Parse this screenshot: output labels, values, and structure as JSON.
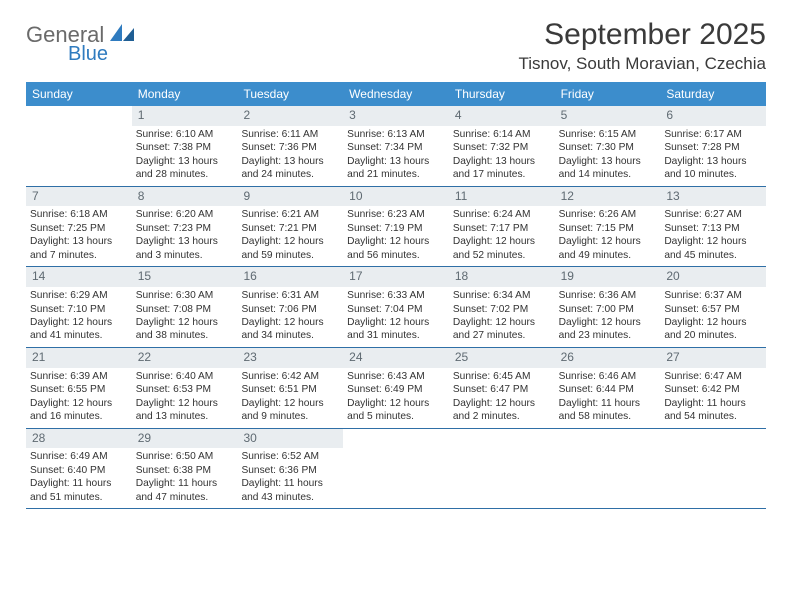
{
  "brand": {
    "name_a": "General",
    "name_b": "Blue",
    "gray": "#6a6a6a",
    "blue": "#2f7bbf"
  },
  "title": "September 2025",
  "location": "Tisnov, South Moravian, Czechia",
  "colors": {
    "header_bg": "#3c8dcc",
    "header_text": "#ffffff",
    "band_bg": "#e9edf0",
    "band_text": "#5f6a72",
    "divider": "#2f6fa6",
    "body_text": "#333333"
  },
  "dow": [
    "Sunday",
    "Monday",
    "Tuesday",
    "Wednesday",
    "Thursday",
    "Friday",
    "Saturday"
  ],
  "weeks": [
    [
      null,
      {
        "n": "1",
        "sr": "6:10 AM",
        "ss": "7:38 PM",
        "dl": "13 hours and 28 minutes."
      },
      {
        "n": "2",
        "sr": "6:11 AM",
        "ss": "7:36 PM",
        "dl": "13 hours and 24 minutes."
      },
      {
        "n": "3",
        "sr": "6:13 AM",
        "ss": "7:34 PM",
        "dl": "13 hours and 21 minutes."
      },
      {
        "n": "4",
        "sr": "6:14 AM",
        "ss": "7:32 PM",
        "dl": "13 hours and 17 minutes."
      },
      {
        "n": "5",
        "sr": "6:15 AM",
        "ss": "7:30 PM",
        "dl": "13 hours and 14 minutes."
      },
      {
        "n": "6",
        "sr": "6:17 AM",
        "ss": "7:28 PM",
        "dl": "13 hours and 10 minutes."
      }
    ],
    [
      {
        "n": "7",
        "sr": "6:18 AM",
        "ss": "7:25 PM",
        "dl": "13 hours and 7 minutes."
      },
      {
        "n": "8",
        "sr": "6:20 AM",
        "ss": "7:23 PM",
        "dl": "13 hours and 3 minutes."
      },
      {
        "n": "9",
        "sr": "6:21 AM",
        "ss": "7:21 PM",
        "dl": "12 hours and 59 minutes."
      },
      {
        "n": "10",
        "sr": "6:23 AM",
        "ss": "7:19 PM",
        "dl": "12 hours and 56 minutes."
      },
      {
        "n": "11",
        "sr": "6:24 AM",
        "ss": "7:17 PM",
        "dl": "12 hours and 52 minutes."
      },
      {
        "n": "12",
        "sr": "6:26 AM",
        "ss": "7:15 PM",
        "dl": "12 hours and 49 minutes."
      },
      {
        "n": "13",
        "sr": "6:27 AM",
        "ss": "7:13 PM",
        "dl": "12 hours and 45 minutes."
      }
    ],
    [
      {
        "n": "14",
        "sr": "6:29 AM",
        "ss": "7:10 PM",
        "dl": "12 hours and 41 minutes."
      },
      {
        "n": "15",
        "sr": "6:30 AM",
        "ss": "7:08 PM",
        "dl": "12 hours and 38 minutes."
      },
      {
        "n": "16",
        "sr": "6:31 AM",
        "ss": "7:06 PM",
        "dl": "12 hours and 34 minutes."
      },
      {
        "n": "17",
        "sr": "6:33 AM",
        "ss": "7:04 PM",
        "dl": "12 hours and 31 minutes."
      },
      {
        "n": "18",
        "sr": "6:34 AM",
        "ss": "7:02 PM",
        "dl": "12 hours and 27 minutes."
      },
      {
        "n": "19",
        "sr": "6:36 AM",
        "ss": "7:00 PM",
        "dl": "12 hours and 23 minutes."
      },
      {
        "n": "20",
        "sr": "6:37 AM",
        "ss": "6:57 PM",
        "dl": "12 hours and 20 minutes."
      }
    ],
    [
      {
        "n": "21",
        "sr": "6:39 AM",
        "ss": "6:55 PM",
        "dl": "12 hours and 16 minutes."
      },
      {
        "n": "22",
        "sr": "6:40 AM",
        "ss": "6:53 PM",
        "dl": "12 hours and 13 minutes."
      },
      {
        "n": "23",
        "sr": "6:42 AM",
        "ss": "6:51 PM",
        "dl": "12 hours and 9 minutes."
      },
      {
        "n": "24",
        "sr": "6:43 AM",
        "ss": "6:49 PM",
        "dl": "12 hours and 5 minutes."
      },
      {
        "n": "25",
        "sr": "6:45 AM",
        "ss": "6:47 PM",
        "dl": "12 hours and 2 minutes."
      },
      {
        "n": "26",
        "sr": "6:46 AM",
        "ss": "6:44 PM",
        "dl": "11 hours and 58 minutes."
      },
      {
        "n": "27",
        "sr": "6:47 AM",
        "ss": "6:42 PM",
        "dl": "11 hours and 54 minutes."
      }
    ],
    [
      {
        "n": "28",
        "sr": "6:49 AM",
        "ss": "6:40 PM",
        "dl": "11 hours and 51 minutes."
      },
      {
        "n": "29",
        "sr": "6:50 AM",
        "ss": "6:38 PM",
        "dl": "11 hours and 47 minutes."
      },
      {
        "n": "30",
        "sr": "6:52 AM",
        "ss": "6:36 PM",
        "dl": "11 hours and 43 minutes."
      },
      null,
      null,
      null,
      null
    ]
  ],
  "labels": {
    "sunrise": "Sunrise:",
    "sunset": "Sunset:",
    "daylight": "Daylight:"
  }
}
